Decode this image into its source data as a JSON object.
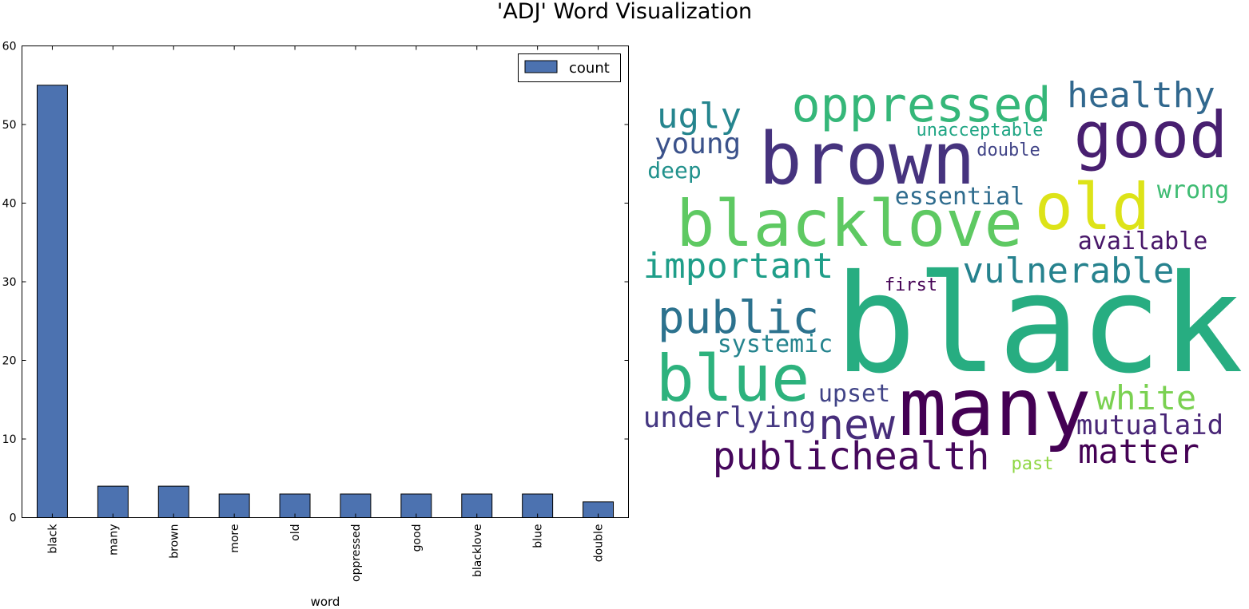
{
  "figure": {
    "title": "'ADJ' Word Visualization"
  },
  "chart_data": [
    {
      "type": "bar",
      "title": "",
      "xlabel": "word",
      "ylabel": "",
      "categories": [
        "black",
        "many",
        "brown",
        "more",
        "old",
        "oppressed",
        "good",
        "blacklove",
        "blue",
        "double"
      ],
      "series": [
        {
          "name": "count",
          "values": [
            55,
            4,
            4,
            3,
            3,
            3,
            3,
            3,
            3,
            2
          ],
          "color": "#4c72b0"
        }
      ],
      "ylim": [
        0,
        60
      ],
      "yticks": [
        0,
        10,
        20,
        30,
        40,
        50,
        60
      ],
      "grid": false,
      "legend_position": "top-right"
    }
  ],
  "wordcloud": {
    "words": [
      {
        "text": "black",
        "color": "#27ad81"
      },
      {
        "text": "many",
        "color": "#440154"
      },
      {
        "text": "brown",
        "color": "#46337e"
      },
      {
        "text": "good",
        "color": "#481f70"
      },
      {
        "text": "blacklove",
        "color": "#5ec962"
      },
      {
        "text": "old",
        "color": "#dde318"
      },
      {
        "text": "oppressed",
        "color": "#35b779"
      },
      {
        "text": "blue",
        "color": "#2db27d"
      },
      {
        "text": "public",
        "color": "#2c728e"
      },
      {
        "text": "new",
        "color": "#472d7b"
      },
      {
        "text": "publichealth",
        "color": "#46085c"
      },
      {
        "text": "healthy",
        "color": "#31688e"
      },
      {
        "text": "important",
        "color": "#1f9e89"
      },
      {
        "text": "vulnerable",
        "color": "#26828e"
      },
      {
        "text": "ugly",
        "color": "#25858e"
      },
      {
        "text": "young",
        "color": "#3b528b"
      },
      {
        "text": "matter",
        "color": "#440154"
      },
      {
        "text": "white",
        "color": "#7ad151"
      },
      {
        "text": "underlying",
        "color": "#453882"
      },
      {
        "text": "mutualaid",
        "color": "#482576"
      },
      {
        "text": "essential",
        "color": "#2f6c8e"
      },
      {
        "text": "available",
        "color": "#481769"
      },
      {
        "text": "upset",
        "color": "#414487"
      },
      {
        "text": "systemic",
        "color": "#25848e"
      },
      {
        "text": "wrong",
        "color": "#3fbc73"
      },
      {
        "text": "deep",
        "color": "#21918c"
      },
      {
        "text": "unacceptable",
        "color": "#21a685"
      },
      {
        "text": "double",
        "color": "#414487"
      },
      {
        "text": "first",
        "color": "#440154"
      },
      {
        "text": "past",
        "color": "#8fd744"
      }
    ]
  }
}
